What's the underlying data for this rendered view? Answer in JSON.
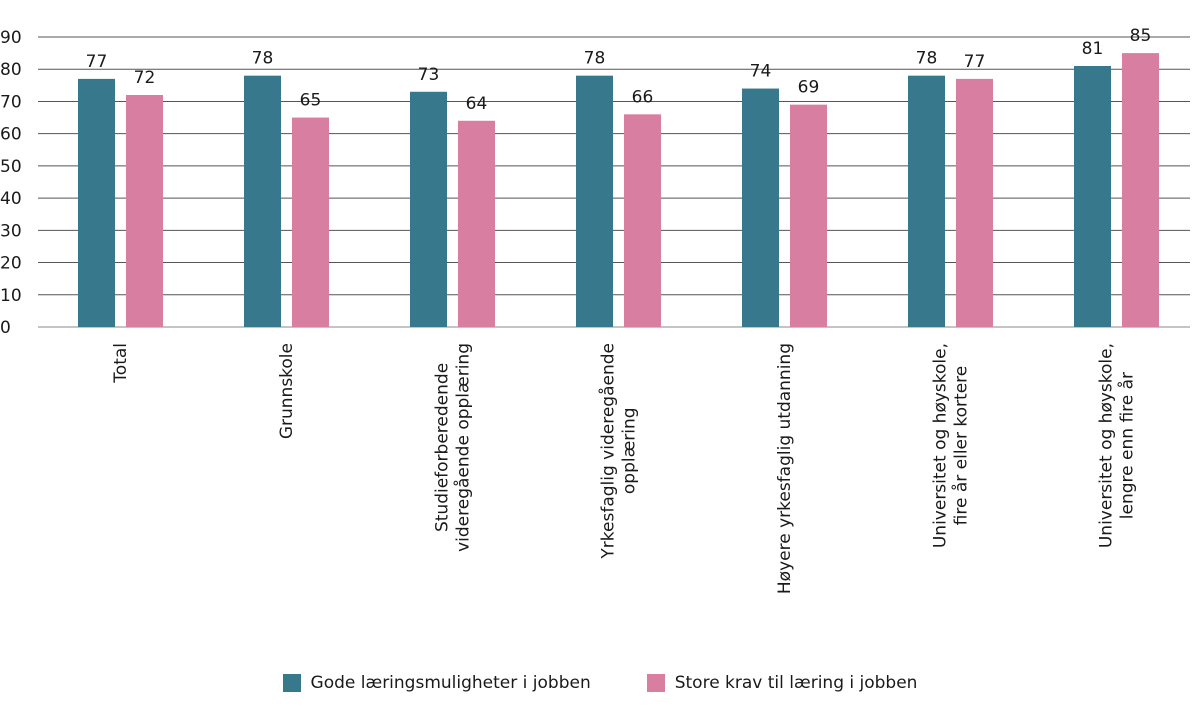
{
  "chart_data": {
    "type": "bar",
    "categories": [
      "Total",
      "Grunnskole",
      "Studieforberedende\nvideregående opplæring",
      "Yrkesfaglig videregående\nopplæring",
      "Høyere yrkesfaglig utdanning",
      "Universitet og høyskole,\nfire år eller kortere",
      "Universitet og høyskole,\nlengre enn fire år"
    ],
    "series": [
      {
        "name": "Gode læringsmuligheter i jobben",
        "color": "#37788c",
        "values": [
          77,
          78,
          73,
          78,
          74,
          78,
          81
        ]
      },
      {
        "name": "Store krav til læring i jobben",
        "color": "#d87ea0",
        "values": [
          72,
          65,
          64,
          66,
          69,
          77,
          85
        ]
      }
    ],
    "ylim": [
      0,
      90
    ],
    "yticks": [
      0,
      10,
      20,
      30,
      40,
      50,
      60,
      70,
      80,
      90
    ],
    "grid": true,
    "data_labels": true,
    "legend_placement": "bottom"
  }
}
